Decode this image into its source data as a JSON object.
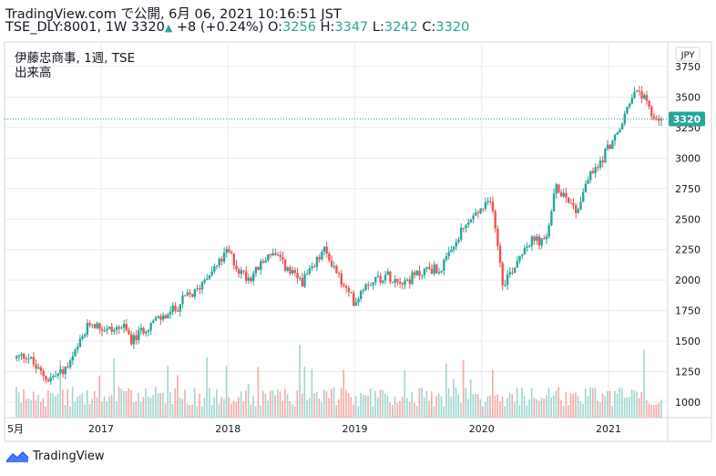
{
  "header": {
    "line1": "TradingView.com で公開, 6月 06, 2021 10:16:51 JST",
    "symbol": "TSE_DLY:8001, 1W",
    "last": "3320",
    "change": "+8 (+0.24%)",
    "o_label": "O:",
    "o": "3256",
    "h_label": "H:",
    "h": "3347",
    "l_label": "L:",
    "l": "3242",
    "c_label": "C:",
    "c": "3320"
  },
  "legend": {
    "series": "伊藤忠商事, 1週, TSE",
    "volume": "出来高"
  },
  "currency": "JPY",
  "price_tag": "3320",
  "footer": {
    "brand": "TradingView"
  },
  "colors": {
    "up": "#26a69a",
    "down": "#ef5350",
    "vol_up": "#9fd6cf",
    "vol_down": "#f5a9a7",
    "grid": "#e8eaed"
  },
  "chart_data": {
    "type": "candlestick",
    "y_ticks": [
      3750,
      3500,
      3250,
      3000,
      2750,
      2500,
      2250,
      2000,
      1750,
      1500,
      1250,
      1000
    ],
    "x_ticks": [
      "5月",
      "2017",
      "2018",
      "2019",
      "2020",
      "2021"
    ],
    "last_price": 3320,
    "period": "2016-05 to 2021-06 weekly",
    "price_path": [
      [
        "2016-05",
        1360
      ],
      [
        "2016-06",
        1390
      ],
      [
        "2016-07",
        1260
      ],
      [
        "2016-08",
        1190
      ],
      [
        "2016-09",
        1230
      ],
      [
        "2016-10",
        1300
      ],
      [
        "2016-11",
        1480
      ],
      [
        "2016-12",
        1660
      ],
      [
        "2017-01",
        1610
      ],
      [
        "2017-02",
        1590
      ],
      [
        "2017-03",
        1620
      ],
      [
        "2017-04",
        1500
      ],
      [
        "2017-05",
        1600
      ],
      [
        "2017-06",
        1660
      ],
      [
        "2017-07",
        1700
      ],
      [
        "2017-08",
        1760
      ],
      [
        "2017-09",
        1860
      ],
      [
        "2017-10",
        1900
      ],
      [
        "2017-11",
        2050
      ],
      [
        "2017-12",
        2120
      ],
      [
        "2018-01",
        2240
      ],
      [
        "2018-02",
        2080
      ],
      [
        "2018-03",
        2020
      ],
      [
        "2018-04",
        2110
      ],
      [
        "2018-05",
        2230
      ],
      [
        "2018-06",
        2150
      ],
      [
        "2018-07",
        2050
      ],
      [
        "2018-08",
        1990
      ],
      [
        "2018-09",
        2080
      ],
      [
        "2018-10",
        2250
      ],
      [
        "2018-11",
        2120
      ],
      [
        "2018-12",
        1930
      ],
      [
        "2019-01",
        1820
      ],
      [
        "2019-02",
        1980
      ],
      [
        "2019-03",
        2010
      ],
      [
        "2019-04",
        2040
      ],
      [
        "2019-05",
        2010
      ],
      [
        "2019-06",
        2000
      ],
      [
        "2019-07",
        2050
      ],
      [
        "2019-08",
        2100
      ],
      [
        "2019-09",
        2080
      ],
      [
        "2019-10",
        2200
      ],
      [
        "2019-11",
        2380
      ],
      [
        "2019-12",
        2500
      ],
      [
        "2020-01",
        2580
      ],
      [
        "2020-02",
        2640
      ],
      [
        "2020-03",
        1980
      ],
      [
        "2020-04",
        2100
      ],
      [
        "2020-05",
        2280
      ],
      [
        "2020-06",
        2330
      ],
      [
        "2020-07",
        2300
      ],
      [
        "2020-08",
        2750
      ],
      [
        "2020-09",
        2700
      ],
      [
        "2020-10",
        2560
      ],
      [
        "2020-11",
        2830
      ],
      [
        "2020-12",
        2930
      ],
      [
        "2021-01",
        3100
      ],
      [
        "2021-02",
        3200
      ],
      [
        "2021-03",
        3480
      ],
      [
        "2021-04",
        3550
      ],
      [
        "2021-05",
        3350
      ],
      [
        "2021-06",
        3320
      ]
    ]
  }
}
